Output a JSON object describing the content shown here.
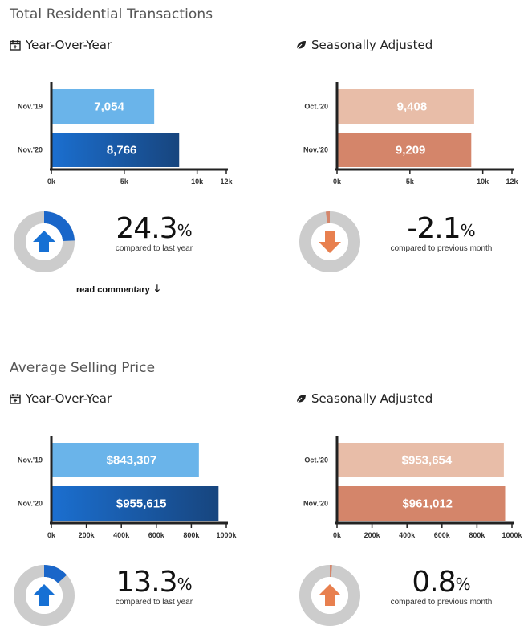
{
  "sections": [
    {
      "title": "Total Residential Transactions",
      "yoy": {
        "heading": "Year-Over-Year",
        "stat_value": "24.3",
        "stat_unit": "%",
        "stat_caption": "compared to last year",
        "donut_fraction": 0.243,
        "direction": "up"
      },
      "sa": {
        "heading": "Seasonally Adjusted",
        "stat_value": "-2.1",
        "stat_unit": "%",
        "stat_caption": "compared to previous month",
        "donut_fraction": 0.021,
        "direction": "down"
      },
      "read_commentary": "read commentary"
    },
    {
      "title": "Average Selling Price",
      "yoy": {
        "heading": "Year-Over-Year",
        "stat_value": "13.3",
        "stat_unit": "%",
        "stat_caption": "compared to last year",
        "donut_fraction": 0.133,
        "direction": "up"
      },
      "sa": {
        "heading": "Seasonally Adjusted",
        "stat_value": "0.8",
        "stat_unit": "%",
        "stat_caption": "compared to previous month",
        "donut_fraction": 0.008,
        "direction": "up"
      }
    }
  ],
  "colors": {
    "blue_light": "#6ab4ea",
    "blue_dark": "#1a5fb4",
    "orange_light": "#e8bda8",
    "orange_dark": "#d4856a",
    "donut_bg": "#cccccc",
    "blue_arrow": "#1670d4",
    "orange_arrow": "#e8804f"
  },
  "chart_data": [
    {
      "type": "bar",
      "id": "trans-yoy",
      "categories": [
        "Nov.'19",
        "Nov.'20"
      ],
      "values": [
        7054,
        8766
      ],
      "value_labels": [
        "7,054",
        "8,766"
      ],
      "xlim": [
        0,
        12000
      ],
      "ticks": [
        0,
        5000,
        10000,
        12000
      ],
      "tick_labels": [
        "0k",
        "5k",
        "10k",
        "12k"
      ]
    },
    {
      "type": "bar",
      "id": "trans-sa",
      "categories": [
        "Oct.'20",
        "Nov.'20"
      ],
      "values": [
        9408,
        9209
      ],
      "value_labels": [
        "9,408",
        "9,209"
      ],
      "xlim": [
        0,
        12000
      ],
      "ticks": [
        0,
        5000,
        10000,
        12000
      ],
      "tick_labels": [
        "0k",
        "5k",
        "10k",
        "12k"
      ]
    },
    {
      "type": "bar",
      "id": "price-yoy",
      "categories": [
        "Nov.'19",
        "Nov.'20"
      ],
      "values": [
        843307,
        955615
      ],
      "value_labels": [
        "$843,307",
        "$955,615"
      ],
      "xlim": [
        0,
        1000000
      ],
      "ticks": [
        0,
        200000,
        400000,
        600000,
        800000,
        1000000
      ],
      "tick_labels": [
        "0k",
        "200k",
        "400k",
        "600k",
        "800k",
        "1000k"
      ]
    },
    {
      "type": "bar",
      "id": "price-sa",
      "categories": [
        "Oct.'20",
        "Nov.'20"
      ],
      "values": [
        953654,
        961012
      ],
      "value_labels": [
        "$953,654",
        "$961,012"
      ],
      "xlim": [
        0,
        1000000
      ],
      "ticks": [
        0,
        200000,
        400000,
        600000,
        800000,
        1000000
      ],
      "tick_labels": [
        "0k",
        "200k",
        "400k",
        "600k",
        "800k",
        "1000k"
      ]
    }
  ]
}
